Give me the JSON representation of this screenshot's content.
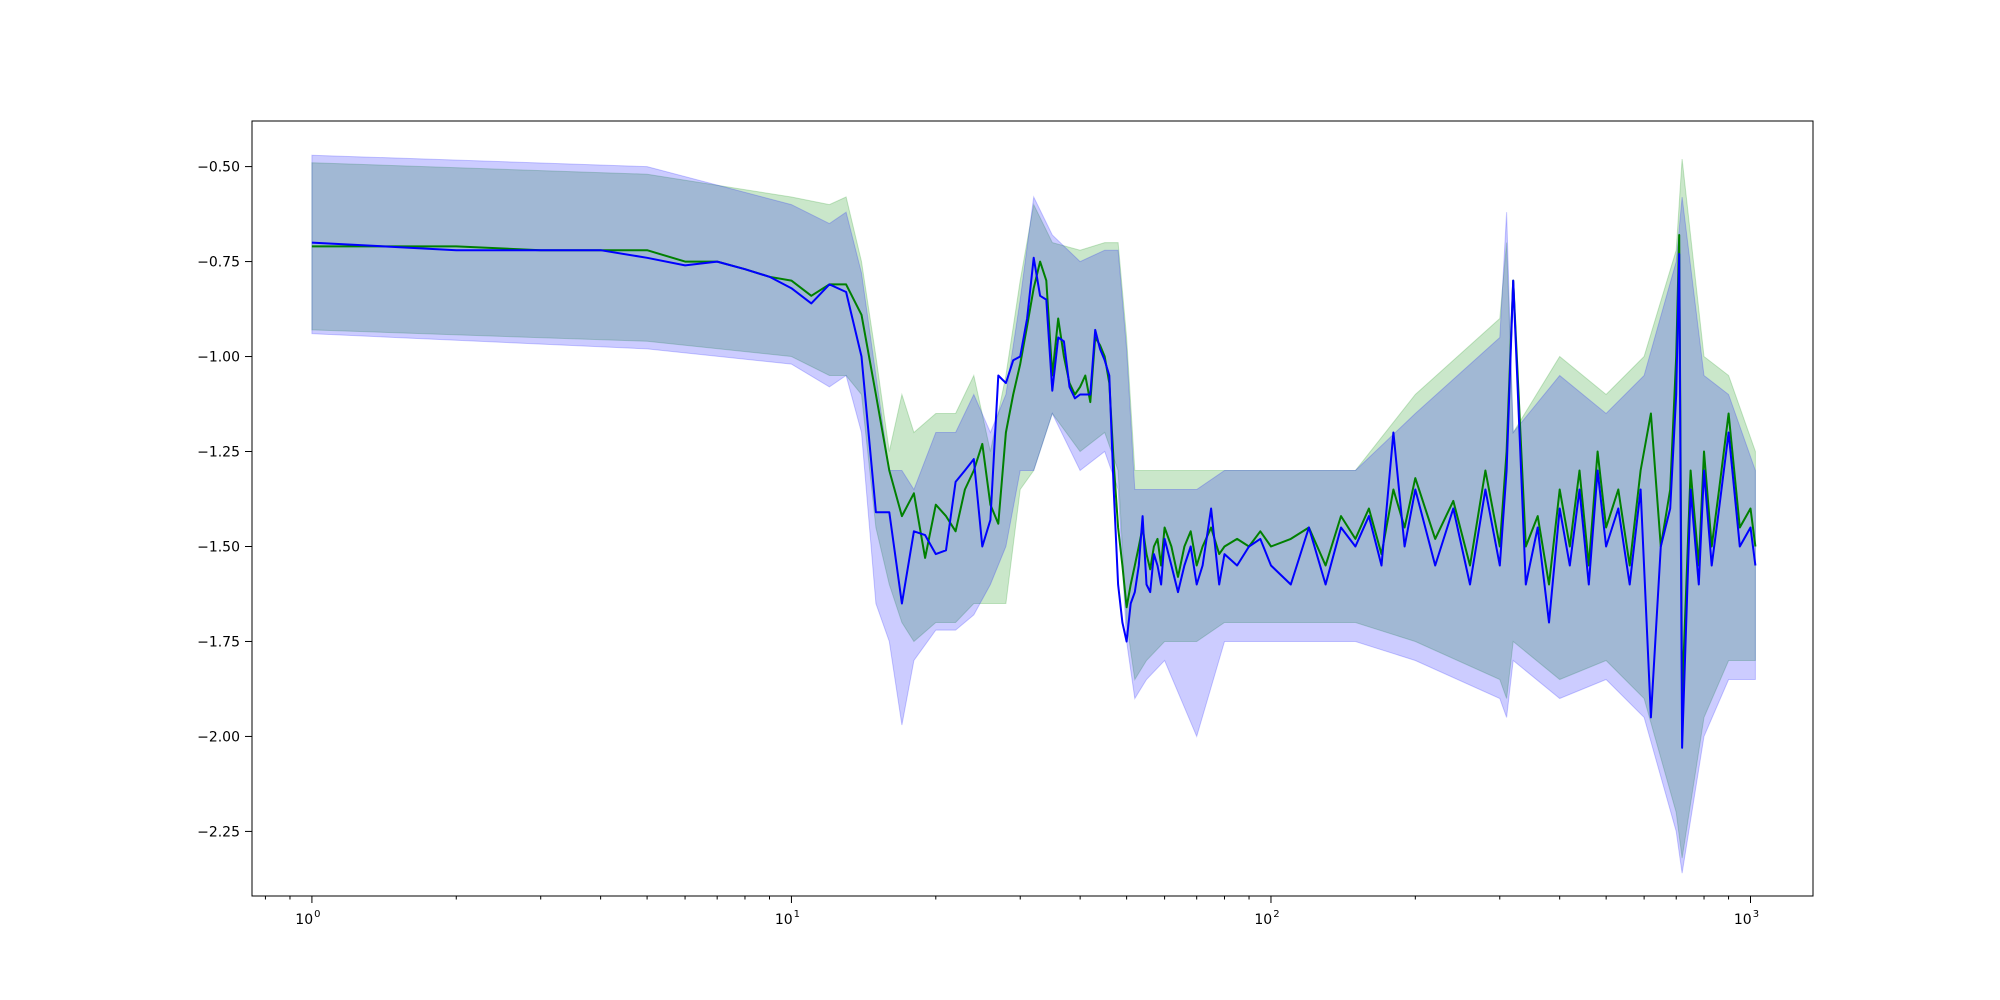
{
  "chart_data": {
    "type": "line",
    "title": "",
    "xlabel": "",
    "ylabel": "",
    "xscale": "log",
    "xlim": [
      0.75,
      1350
    ],
    "ylim": [
      -2.42,
      -0.38
    ],
    "grid": false,
    "legend": "none",
    "x_ticks": [
      {
        "value": 1,
        "base": "10",
        "exp": "0"
      },
      {
        "value": 10,
        "base": "10",
        "exp": "1"
      },
      {
        "value": 100,
        "base": "10",
        "exp": "2"
      },
      {
        "value": 1000,
        "base": "10",
        "exp": "3"
      }
    ],
    "y_ticks": [
      {
        "value": -0.5,
        "label": "−0.50"
      },
      {
        "value": -0.75,
        "label": "−0.75"
      },
      {
        "value": -1.0,
        "label": "−1.00"
      },
      {
        "value": -1.25,
        "label": "−1.25"
      },
      {
        "value": -1.5,
        "label": "−1.50"
      },
      {
        "value": -1.75,
        "label": "−1.75"
      },
      {
        "value": -2.0,
        "label": "−2.00"
      },
      {
        "value": -2.25,
        "label": "−2.25"
      }
    ],
    "series": [
      {
        "color": "#008000",
        "band_color": "#2ca02c",
        "band_opacity": 0.25,
        "x": [
          1,
          2,
          3,
          4,
          5,
          6,
          7,
          8,
          9,
          10,
          11,
          12,
          13,
          14,
          15,
          16,
          17,
          18,
          19,
          20,
          21,
          22,
          23,
          24,
          25,
          26,
          27,
          28,
          29,
          30,
          31,
          32,
          33,
          34,
          35,
          36,
          37,
          38,
          39,
          40,
          41,
          42,
          43,
          44,
          45,
          46,
          47,
          48,
          49,
          50,
          51,
          52,
          53,
          54,
          55,
          56,
          57,
          58,
          59,
          60,
          62,
          64,
          66,
          68,
          70,
          72,
          75,
          78,
          80,
          85,
          90,
          95,
          100,
          110,
          120,
          130,
          140,
          150,
          160,
          170,
          180,
          190,
          200,
          220,
          240,
          260,
          280,
          300,
          310,
          320,
          340,
          360,
          380,
          400,
          420,
          440,
          460,
          480,
          500,
          530,
          560,
          590,
          620,
          650,
          680,
          700,
          710,
          720,
          750,
          780,
          800,
          830,
          860,
          900,
          950,
          1000,
          1024
        ],
        "y": [
          -0.71,
          -0.71,
          -0.72,
          -0.72,
          -0.72,
          -0.75,
          -0.75,
          -0.77,
          -0.79,
          -0.8,
          -0.84,
          -0.81,
          -0.81,
          -0.89,
          -1.1,
          -1.3,
          -1.42,
          -1.36,
          -1.53,
          -1.39,
          -1.42,
          -1.46,
          -1.35,
          -1.3,
          -1.23,
          -1.39,
          -1.44,
          -1.2,
          -1.1,
          -1.02,
          -0.92,
          -0.82,
          -0.75,
          -0.8,
          -1.05,
          -0.9,
          -1.0,
          -1.07,
          -1.1,
          -1.08,
          -1.05,
          -1.12,
          -0.95,
          -0.97,
          -1.0,
          -1.07,
          -1.28,
          -1.45,
          -1.55,
          -1.66,
          -1.6,
          -1.55,
          -1.5,
          -1.45,
          -1.52,
          -1.56,
          -1.5,
          -1.48,
          -1.55,
          -1.45,
          -1.5,
          -1.58,
          -1.5,
          -1.46,
          -1.55,
          -1.5,
          -1.45,
          -1.52,
          -1.5,
          -1.48,
          -1.5,
          -1.46,
          -1.5,
          -1.48,
          -1.45,
          -1.55,
          -1.42,
          -1.48,
          -1.4,
          -1.52,
          -1.35,
          -1.45,
          -1.32,
          -1.48,
          -1.38,
          -1.55,
          -1.3,
          -1.5,
          -1.25,
          -0.8,
          -1.5,
          -1.42,
          -1.6,
          -1.35,
          -1.5,
          -1.3,
          -1.55,
          -1.25,
          -1.45,
          -1.35,
          -1.55,
          -1.3,
          -1.15,
          -1.5,
          -1.35,
          -1.0,
          -0.68,
          -1.9,
          -1.3,
          -1.55,
          -1.25,
          -1.5,
          -1.35,
          -1.15,
          -1.45,
          -1.4,
          -1.5
        ]
      },
      {
        "color": "#0000ff",
        "band_color": "#0000ff",
        "band_opacity": 0.2,
        "x": [
          1,
          2,
          3,
          4,
          5,
          6,
          7,
          8,
          9,
          10,
          11,
          12,
          13,
          14,
          15,
          16,
          17,
          18,
          19,
          20,
          21,
          22,
          23,
          24,
          25,
          26,
          27,
          28,
          29,
          30,
          31,
          32,
          33,
          34,
          35,
          36,
          37,
          38,
          39,
          40,
          41,
          42,
          43,
          44,
          45,
          46,
          47,
          48,
          49,
          50,
          51,
          52,
          53,
          54,
          55,
          56,
          57,
          58,
          59,
          60,
          62,
          64,
          66,
          68,
          70,
          72,
          75,
          78,
          80,
          85,
          90,
          95,
          100,
          110,
          120,
          130,
          140,
          150,
          160,
          170,
          180,
          190,
          200,
          220,
          240,
          260,
          280,
          300,
          310,
          320,
          340,
          360,
          380,
          400,
          420,
          440,
          460,
          480,
          500,
          530,
          560,
          590,
          620,
          650,
          680,
          700,
          710,
          720,
          750,
          780,
          800,
          830,
          860,
          900,
          950,
          1000,
          1024
        ],
        "y": [
          -0.7,
          -0.72,
          -0.72,
          -0.72,
          -0.74,
          -0.76,
          -0.75,
          -0.77,
          -0.79,
          -0.82,
          -0.86,
          -0.81,
          -0.83,
          -1.0,
          -1.41,
          -1.41,
          -1.65,
          -1.46,
          -1.47,
          -1.52,
          -1.51,
          -1.33,
          -1.3,
          -1.27,
          -1.5,
          -1.43,
          -1.05,
          -1.07,
          -1.01,
          -1.0,
          -0.9,
          -0.74,
          -0.84,
          -0.85,
          -1.09,
          -0.95,
          -0.96,
          -1.08,
          -1.11,
          -1.1,
          -1.1,
          -1.1,
          -0.93,
          -0.98,
          -1.01,
          -1.05,
          -1.35,
          -1.6,
          -1.7,
          -1.75,
          -1.65,
          -1.62,
          -1.55,
          -1.42,
          -1.6,
          -1.62,
          -1.52,
          -1.55,
          -1.6,
          -1.48,
          -1.55,
          -1.62,
          -1.55,
          -1.5,
          -1.6,
          -1.55,
          -1.4,
          -1.6,
          -1.52,
          -1.55,
          -1.5,
          -1.48,
          -1.55,
          -1.6,
          -1.45,
          -1.6,
          -1.45,
          -1.5,
          -1.42,
          -1.55,
          -1.2,
          -1.5,
          -1.35,
          -1.55,
          -1.4,
          -1.6,
          -1.35,
          -1.55,
          -1.3,
          -0.8,
          -1.6,
          -1.45,
          -1.7,
          -1.4,
          -1.55,
          -1.35,
          -1.6,
          -1.3,
          -1.5,
          -1.4,
          -1.6,
          -1.35,
          -1.95,
          -1.5,
          -1.4,
          -1.1,
          -0.73,
          -2.03,
          -1.35,
          -1.6,
          -1.3,
          -1.55,
          -1.4,
          -1.2,
          -1.5,
          -1.45,
          -1.55
        ]
      }
    ],
    "bands": [
      {
        "color": "#2ca02c",
        "opacity": 0.25,
        "x": [
          1,
          5,
          10,
          12,
          13,
          14,
          15,
          16,
          17,
          18,
          20,
          22,
          24,
          26,
          28,
          30,
          32,
          35,
          40,
          45,
          48,
          50,
          52,
          55,
          60,
          70,
          80,
          100,
          150,
          200,
          300,
          310,
          320,
          400,
          500,
          600,
          700,
          720,
          800,
          900,
          1024
        ],
        "upper": [
          -0.49,
          -0.52,
          -0.58,
          -0.6,
          -0.58,
          -0.75,
          -1.0,
          -1.25,
          -1.1,
          -1.2,
          -1.15,
          -1.15,
          -1.05,
          -1.25,
          -1.05,
          -0.8,
          -0.6,
          -0.7,
          -0.72,
          -0.7,
          -0.7,
          -0.95,
          -1.3,
          -1.3,
          -1.3,
          -1.3,
          -1.3,
          -1.3,
          -1.3,
          -1.1,
          -0.9,
          -0.7,
          -1.2,
          -1.0,
          -1.1,
          -1.0,
          -0.72,
          -0.48,
          -1.0,
          -1.05,
          -1.25
        ],
        "lower": [
          -0.93,
          -0.96,
          -1.0,
          -1.05,
          -1.05,
          -1.1,
          -1.45,
          -1.6,
          -1.7,
          -1.75,
          -1.7,
          -1.7,
          -1.65,
          -1.65,
          -1.65,
          -1.35,
          -1.3,
          -1.15,
          -1.25,
          -1.2,
          -1.3,
          -1.7,
          -1.85,
          -1.8,
          -1.75,
          -1.75,
          -1.7,
          -1.7,
          -1.7,
          -1.75,
          -1.85,
          -1.9,
          -1.75,
          -1.85,
          -1.8,
          -1.9,
          -2.2,
          -2.32,
          -1.95,
          -1.8,
          -1.8
        ]
      },
      {
        "color": "#0000ff",
        "opacity": 0.2,
        "x": [
          1,
          5,
          10,
          12,
          13,
          14,
          15,
          16,
          17,
          18,
          20,
          22,
          24,
          26,
          28,
          30,
          32,
          35,
          40,
          45,
          48,
          50,
          52,
          55,
          60,
          70,
          80,
          100,
          150,
          200,
          300,
          310,
          320,
          400,
          500,
          600,
          700,
          720,
          800,
          900,
          1024
        ],
        "upper": [
          -0.47,
          -0.5,
          -0.6,
          -0.65,
          -0.62,
          -0.78,
          -1.05,
          -1.3,
          -1.3,
          -1.35,
          -1.2,
          -1.2,
          -1.1,
          -1.2,
          -1.1,
          -0.85,
          -0.58,
          -0.68,
          -0.75,
          -0.72,
          -0.72,
          -0.98,
          -1.35,
          -1.35,
          -1.35,
          -1.35,
          -1.3,
          -1.3,
          -1.3,
          -1.15,
          -0.95,
          -0.62,
          -1.2,
          -1.05,
          -1.15,
          -1.05,
          -0.75,
          -0.58,
          -1.05,
          -1.1,
          -1.3
        ],
        "lower": [
          -0.94,
          -0.98,
          -1.02,
          -1.08,
          -1.05,
          -1.2,
          -1.65,
          -1.75,
          -1.97,
          -1.8,
          -1.72,
          -1.72,
          -1.68,
          -1.6,
          -1.5,
          -1.3,
          -1.3,
          -1.15,
          -1.3,
          -1.25,
          -1.35,
          -1.75,
          -1.9,
          -1.85,
          -1.8,
          -2.0,
          -1.75,
          -1.75,
          -1.75,
          -1.8,
          -1.9,
          -1.95,
          -1.8,
          -1.9,
          -1.85,
          -1.95,
          -2.25,
          -2.36,
          -2.0,
          -1.85,
          -1.85
        ]
      }
    ]
  }
}
